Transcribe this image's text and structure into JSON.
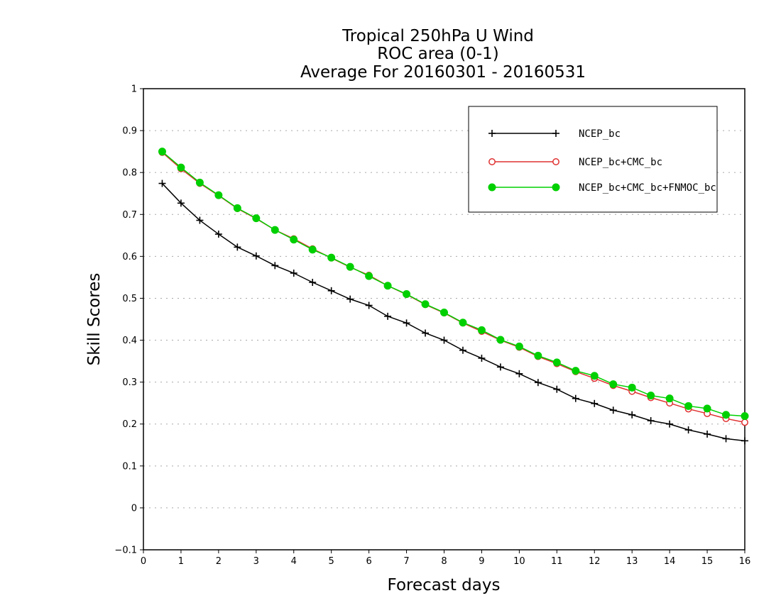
{
  "chart_data": {
    "type": "line",
    "title": [
      "Tropical 250hPa U Wind",
      "ROC area (0-1)",
      "Average For 20160301 - 20160531"
    ],
    "xlabel": "Forecast days",
    "ylabel": "Skill Scores",
    "xlim": [
      0,
      16
    ],
    "ylim": [
      -0.1,
      1
    ],
    "x_ticks": [
      "0",
      "1",
      "2",
      "3",
      "4",
      "5",
      "6",
      "7",
      "8",
      "9",
      "10",
      "11",
      "12",
      "13",
      "14",
      "15",
      "16"
    ],
    "y_ticks": [
      "−0.1",
      "0",
      "0.1",
      "0.2",
      "0.3",
      "0.4",
      "0.5",
      "0.6",
      "0.7",
      "0.8",
      "0.9",
      "1"
    ],
    "grid": true,
    "legend_position": "top-right",
    "x": [
      0.5,
      1,
      1.5,
      2,
      2.5,
      3,
      3.5,
      4,
      4.5,
      5,
      5.5,
      6,
      6.5,
      7,
      7.5,
      8,
      8.5,
      9,
      9.5,
      10,
      10.5,
      11,
      11.5,
      12,
      12.5,
      13,
      13.5,
      14,
      14.5,
      15,
      15.5,
      16
    ],
    "series": [
      {
        "name": "NCEP_bc",
        "color": "#000000",
        "marker": "plus",
        "values": [
          0.774,
          0.727,
          0.686,
          0.653,
          0.622,
          0.601,
          0.578,
          0.56,
          0.538,
          0.518,
          0.498,
          0.483,
          0.457,
          0.441,
          0.417,
          0.4,
          0.376,
          0.357,
          0.336,
          0.32,
          0.299,
          0.283,
          0.261,
          0.249,
          0.233,
          0.222,
          0.208,
          0.2,
          0.186,
          0.176,
          0.165,
          0.16
        ]
      },
      {
        "name": "NCEP_bc+CMC_bc",
        "color": "#e03030",
        "marker": "open-circle",
        "values": [
          0.848,
          0.809,
          0.774,
          0.745,
          0.714,
          0.69,
          0.663,
          0.642,
          0.618,
          0.596,
          0.574,
          0.555,
          0.53,
          0.509,
          0.485,
          0.465,
          0.441,
          0.421,
          0.4,
          0.383,
          0.361,
          0.344,
          0.325,
          0.309,
          0.292,
          0.278,
          0.263,
          0.25,
          0.236,
          0.225,
          0.213,
          0.204
        ]
      },
      {
        "name": "NCEP_bc+CMC_bc+FNMOC_bc",
        "color": "#00d000",
        "marker": "filled-circle",
        "values": [
          0.85,
          0.812,
          0.776,
          0.746,
          0.715,
          0.691,
          0.663,
          0.64,
          0.616,
          0.597,
          0.575,
          0.553,
          0.53,
          0.51,
          0.486,
          0.466,
          0.442,
          0.424,
          0.401,
          0.385,
          0.363,
          0.347,
          0.327,
          0.315,
          0.295,
          0.287,
          0.268,
          0.261,
          0.243,
          0.237,
          0.222,
          0.219
        ]
      }
    ]
  }
}
